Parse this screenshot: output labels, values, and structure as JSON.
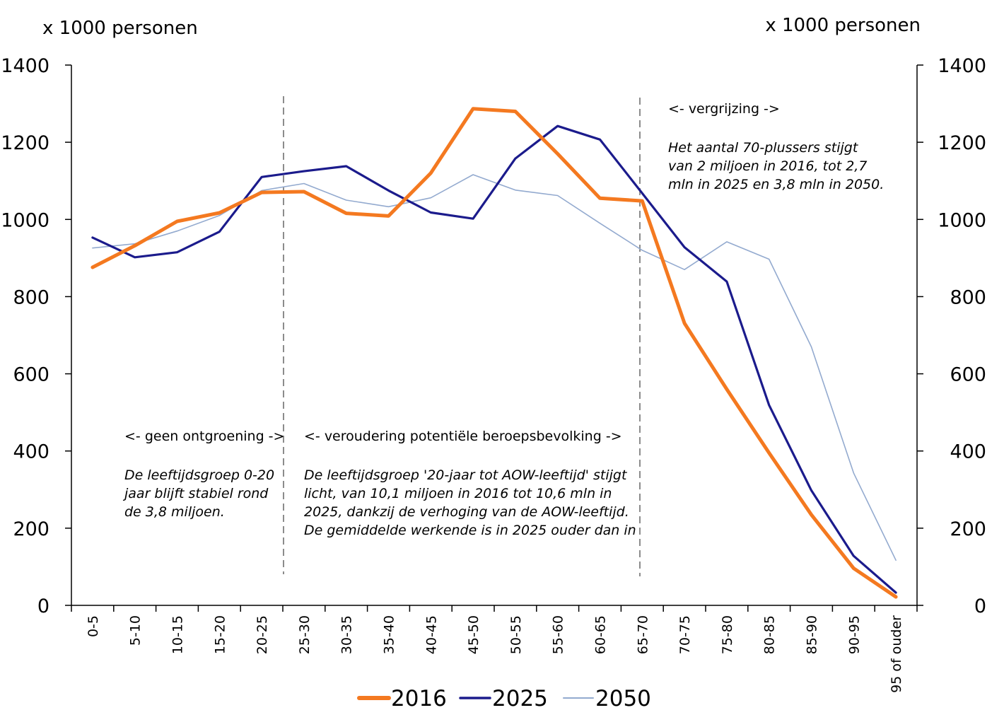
{
  "chart_data": {
    "type": "line",
    "left_axis_label": "x 1000 personen",
    "right_axis_label": "x 1000 personen",
    "ylim": [
      0,
      1400
    ],
    "yticks": [
      "0",
      "200",
      "400",
      "600",
      "800",
      "1000",
      "1200",
      "1400"
    ],
    "categories": [
      "0-5",
      "5-10",
      "10-15",
      "15-20",
      "20-25",
      "25-30",
      "30-35",
      "35-40",
      "40-45",
      "45-50",
      "50-55",
      "55-60",
      "60-65",
      "65-70",
      "70-75",
      "75-80",
      "80-85",
      "85-90",
      "90-95",
      "95 of ouder"
    ],
    "series": [
      {
        "name": "2016",
        "color": "#F47920",
        "values": [
          876,
          932,
          995,
          1017,
          1070,
          1072,
          1016,
          1009,
          1120,
          1287,
          1280,
          1170,
          1055,
          1048,
          731,
          560,
          395,
          235,
          96,
          22
        ]
      },
      {
        "name": "2025",
        "color": "#1B1B8C",
        "values": [
          953,
          902,
          915,
          968,
          1110,
          1125,
          1138,
          1075,
          1018,
          1002,
          1158,
          1242,
          1207,
          1068,
          928,
          839,
          519,
          298,
          128,
          33
        ]
      },
      {
        "name": "2050",
        "color": "#93AACF",
        "values": [
          926,
          937,
          970,
          1010,
          1075,
          1093,
          1050,
          1033,
          1056,
          1116,
          1076,
          1062,
          990,
          920,
          870,
          942,
          897,
          670,
          343,
          117
        ]
      }
    ],
    "annotations": [
      {
        "heading": "<- geen ontgroening ->",
        "lines": [
          "De leeftijdsgroep 0-20",
          "jaar blijft stabiel rond",
          "de 3,8 miljoen."
        ]
      },
      {
        "heading": "<- veroudering potentiële beroepsbevolking ->",
        "lines": [
          "De leeftijdsgroep '20-jaar tot AOW-leeftijd' stijgt",
          "licht, van 10,1 miljoen in 2016 tot 10,6 mln in",
          "2025, dankzij de verhoging van de AOW-leeftijd.",
          "De gemiddelde werkende is in 2025 ouder dan in"
        ]
      },
      {
        "heading": "<- vergrijzing ->",
        "lines": [
          "Het aantal 70-plussers stijgt",
          "van 2 miljoen in 2016, tot 2,7",
          "mln in 2025 en 3,8 mln in 2050."
        ]
      }
    ],
    "legend": [
      "2016",
      "2025",
      "2050"
    ]
  }
}
